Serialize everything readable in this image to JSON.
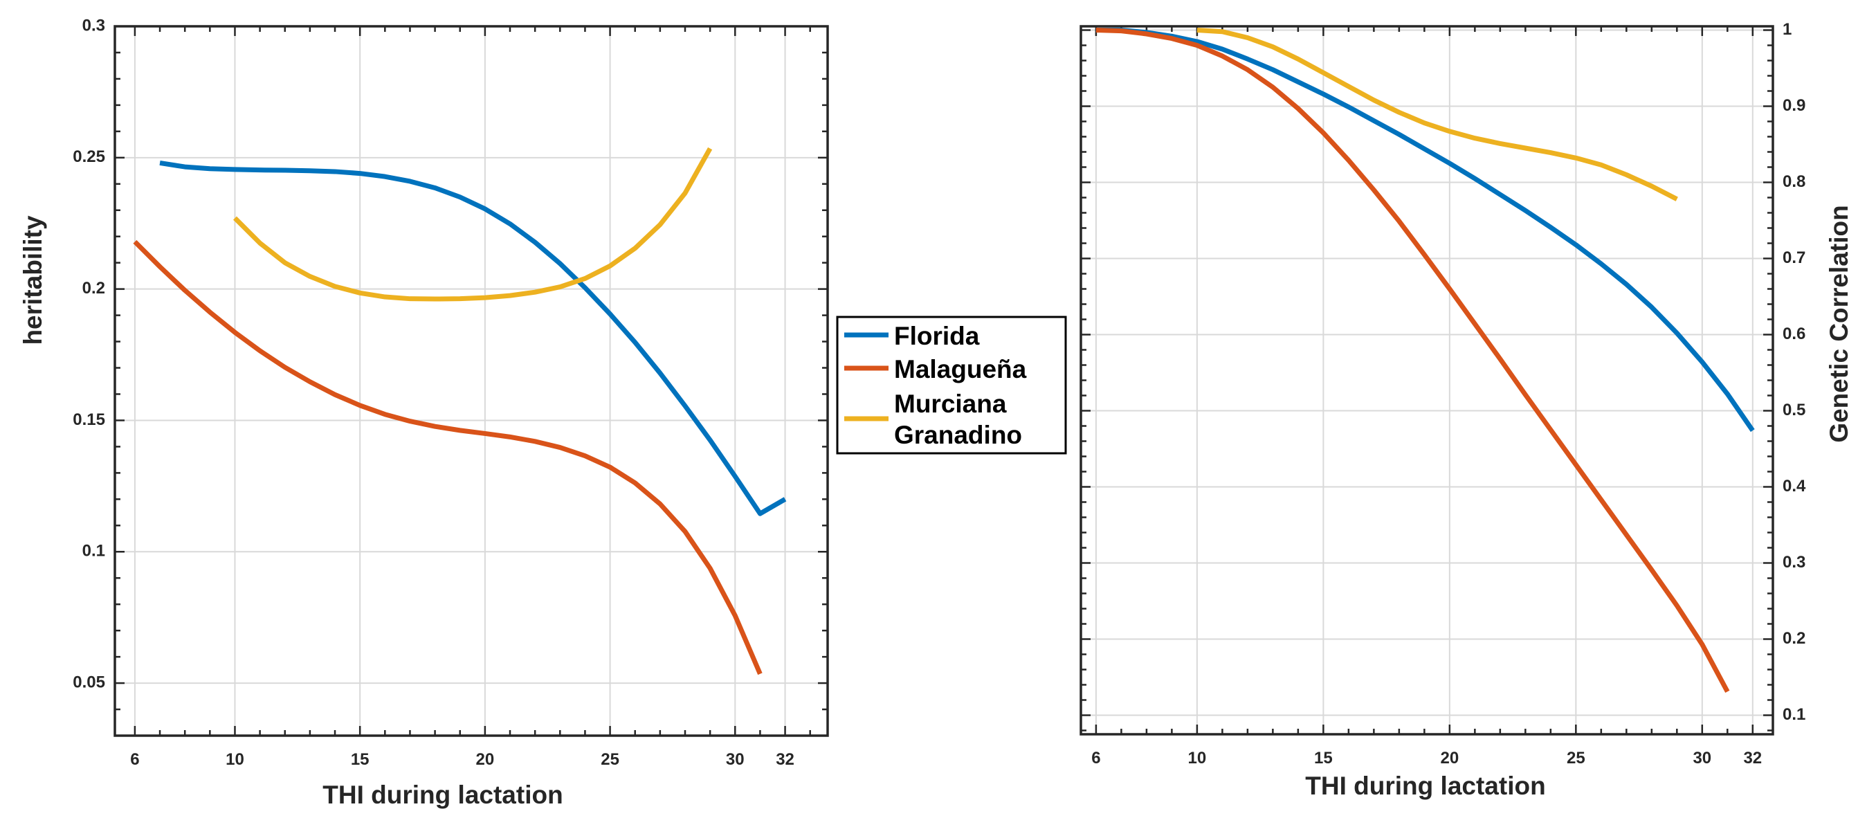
{
  "colors": {
    "florida": "#0072BD",
    "malaguena": "#D95319",
    "murciana": "#EDB120",
    "grid": "#d9d9d9",
    "axis": "#262626"
  },
  "legend": {
    "entries": [
      {
        "lines": [
          "Florida"
        ]
      },
      {
        "lines": [
          "Malagueña"
        ]
      },
      {
        "lines": [
          "Murciana",
          "Granadino"
        ]
      }
    ]
  },
  "chart_data": [
    {
      "type": "line",
      "title": "",
      "xlabel": "THI during lactation",
      "ylabel": "heritability",
      "xlim": [
        5.2,
        33.7
      ],
      "ylim": [
        0.03,
        0.3
      ],
      "xticks": [
        6,
        10,
        15,
        20,
        25,
        30,
        32
      ],
      "yticks": [
        0.05,
        0.1,
        0.15,
        0.2,
        0.25,
        0.3
      ],
      "ytick_labels": [
        "0.05",
        "0.1",
        "0.15",
        "0.2",
        "0.25",
        "0.3"
      ],
      "grid": true,
      "series": [
        {
          "name": "Florida",
          "x": [
            7,
            8,
            9,
            10,
            11,
            12,
            13,
            14,
            15,
            16,
            17,
            18,
            19,
            20,
            21,
            22,
            23,
            24,
            25,
            26,
            27,
            28,
            29,
            30,
            31,
            32
          ],
          "y": [
            0.248,
            0.2465,
            0.2458,
            0.2455,
            0.2453,
            0.2452,
            0.245,
            0.2447,
            0.244,
            0.2428,
            0.241,
            0.2385,
            0.235,
            0.2305,
            0.2248,
            0.2178,
            0.2097,
            0.2005,
            0.1905,
            0.1797,
            0.168,
            0.1555,
            0.1425,
            0.1287,
            0.1145,
            0.12
          ]
        },
        {
          "name": "Malagueña",
          "x": [
            6,
            7,
            8,
            9,
            10,
            11,
            12,
            13,
            14,
            15,
            16,
            17,
            18,
            19,
            20,
            21,
            22,
            23,
            24,
            25,
            26,
            27,
            28,
            29,
            30,
            31
          ],
          "y": [
            0.218,
            0.2085,
            0.1995,
            0.1912,
            0.1835,
            0.1765,
            0.1702,
            0.1647,
            0.1598,
            0.1557,
            0.1523,
            0.1497,
            0.1477,
            0.1462,
            0.145,
            0.1437,
            0.142,
            0.1397,
            0.1365,
            0.1322,
            0.1262,
            0.1182,
            0.1077,
            0.0937,
            0.0757,
            0.0535
          ]
        },
        {
          "name": "Murciana Granadino",
          "x": [
            10,
            11,
            12,
            13,
            14,
            15,
            16,
            17,
            18,
            19,
            20,
            21,
            22,
            23,
            24,
            25,
            26,
            27,
            28,
            29
          ],
          "y": [
            0.227,
            0.2175,
            0.21,
            0.2048,
            0.201,
            0.1985,
            0.197,
            0.1963,
            0.1962,
            0.1963,
            0.1967,
            0.1975,
            0.1988,
            0.2008,
            0.204,
            0.2088,
            0.2155,
            0.2245,
            0.2365,
            0.2535
          ]
        }
      ]
    },
    {
      "type": "line",
      "title": "",
      "xlabel": "THI during lactation",
      "ylabel": "Genetic Correlation",
      "xlim": [
        5.4,
        32.8
      ],
      "ylim": [
        0.075,
        1.005
      ],
      "xticks": [
        6,
        10,
        15,
        20,
        25,
        30,
        32
      ],
      "yticks": [
        0.1,
        0.2,
        0.3,
        0.4,
        0.5,
        0.6,
        0.7,
        0.8,
        0.9,
        1.0
      ],
      "ytick_labels": [
        "0.1",
        "0.2",
        "0.3",
        "0.4",
        "0.5",
        "0.6",
        "0.7",
        "0.8",
        "0.9",
        "1"
      ],
      "grid": true,
      "series": [
        {
          "name": "Florida",
          "x": [
            6,
            7,
            8,
            9,
            10,
            11,
            12,
            13,
            14,
            15,
            16,
            17,
            18,
            19,
            20,
            21,
            22,
            23,
            24,
            25,
            26,
            27,
            28,
            29,
            30,
            31,
            32
          ],
          "y": [
            1.0,
            1.0,
            0.997,
            0.992,
            0.985,
            0.975,
            0.962,
            0.948,
            0.932,
            0.916,
            0.899,
            0.881,
            0.863,
            0.844,
            0.825,
            0.805,
            0.784,
            0.763,
            0.741,
            0.718,
            0.693,
            0.666,
            0.636,
            0.602,
            0.564,
            0.522,
            0.474
          ]
        },
        {
          "name": "Malagueña",
          "x": [
            6,
            7,
            8,
            9,
            10,
            11,
            12,
            13,
            14,
            15,
            16,
            17,
            18,
            19,
            20,
            21,
            22,
            23,
            24,
            25,
            26,
            27,
            28,
            29,
            30,
            31
          ],
          "y": [
            1.0,
            0.999,
            0.995,
            0.989,
            0.98,
            0.966,
            0.948,
            0.925,
            0.897,
            0.865,
            0.829,
            0.79,
            0.749,
            0.705,
            0.66,
            0.614,
            0.568,
            0.521,
            0.475,
            0.429,
            0.383,
            0.337,
            0.291,
            0.244,
            0.193,
            0.131
          ]
        },
        {
          "name": "Murciana Granadino",
          "x": [
            10,
            11,
            12,
            13,
            14,
            15,
            16,
            17,
            18,
            19,
            20,
            21,
            22,
            23,
            24,
            25,
            26,
            27,
            28,
            29
          ],
          "y": [
            1.0,
            0.998,
            0.99,
            0.978,
            0.962,
            0.944,
            0.926,
            0.908,
            0.892,
            0.878,
            0.867,
            0.858,
            0.851,
            0.845,
            0.839,
            0.832,
            0.823,
            0.81,
            0.795,
            0.778
          ]
        }
      ]
    }
  ]
}
